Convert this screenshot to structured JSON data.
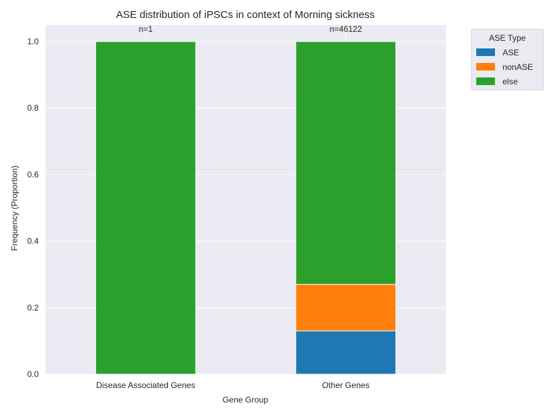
{
  "chart_data": {
    "type": "bar",
    "stacked": true,
    "title": "ASE distribution of iPSCs in context of Morning sickness",
    "xlabel": "Gene Group",
    "ylabel": "Frequency (Proportion)",
    "ylim": [
      0,
      1.05
    ],
    "yticks": [
      "0.0",
      "0.2",
      "0.4",
      "0.6",
      "0.8",
      "1.0"
    ],
    "ytick_values": [
      0,
      0.2,
      0.4,
      0.6,
      0.8,
      1.0
    ],
    "categories": [
      "Disease Associated Genes",
      "Other Genes"
    ],
    "counts": [
      "n=1",
      "n=46122"
    ],
    "series": [
      {
        "name": "ASE",
        "color": "#1f77b4",
        "values": [
          0,
          0.13
        ]
      },
      {
        "name": "nonASE",
        "color": "#ff7f0e",
        "values": [
          0,
          0.14
        ]
      },
      {
        "name": "else",
        "color": "#2ca02c",
        "values": [
          1.0,
          0.73
        ]
      }
    ],
    "grid": true,
    "legend": {
      "title": "ASE Type",
      "placement": "outside-top-right"
    }
  }
}
